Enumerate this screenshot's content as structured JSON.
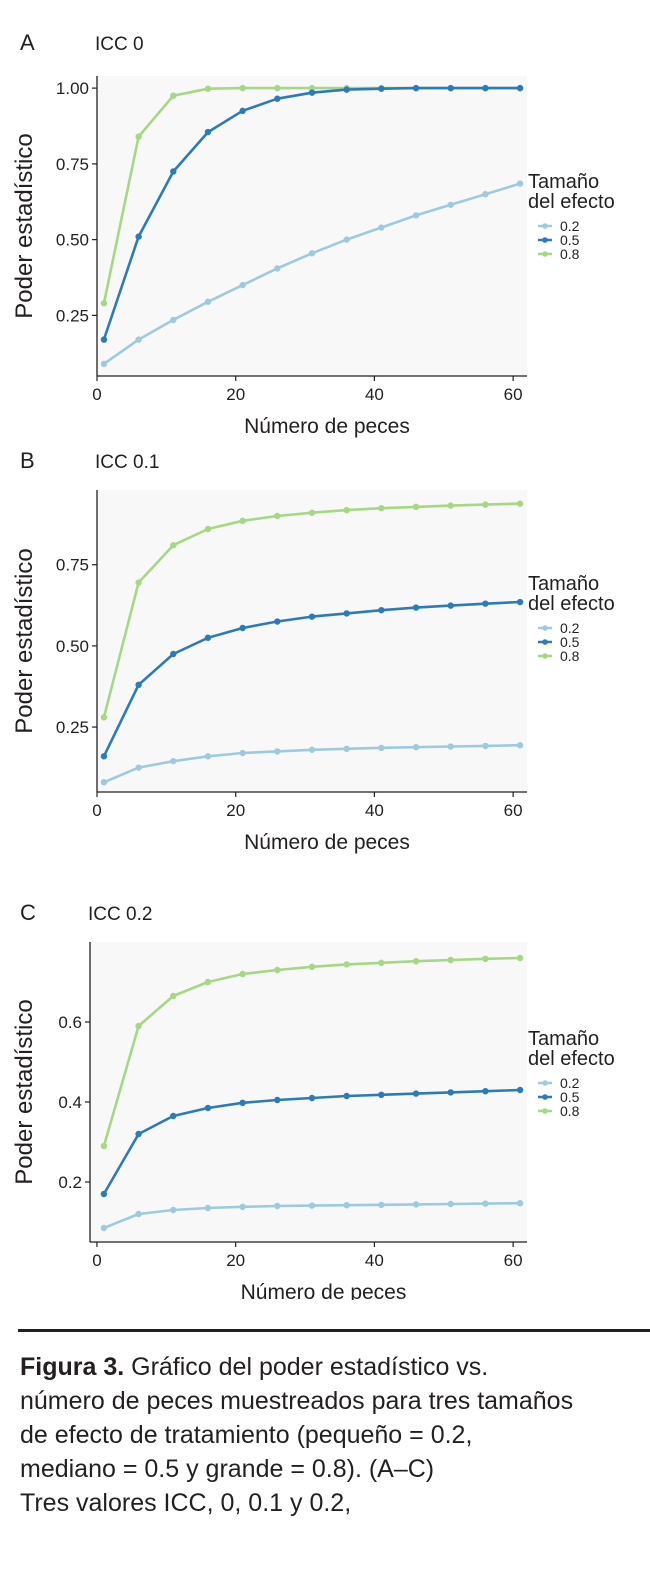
{
  "chart_data": [
    {
      "type": "line",
      "panel": "A",
      "title": "ICC 0",
      "xlabel": "Número de peces",
      "ylabel": "Poder estadístico",
      "xlim": [
        0,
        62
      ],
      "ylim": [
        0.05,
        1.04
      ],
      "xticks": [
        0,
        20,
        40,
        60
      ],
      "yticks": [
        0.25,
        0.5,
        0.75,
        1.0
      ],
      "ytick_labels": [
        "0.25",
        "0.50",
        "0.75",
        "1.00"
      ],
      "legend_title": [
        "Tamaño",
        "del efecto"
      ],
      "x": [
        1,
        6,
        11,
        16,
        21,
        26,
        31,
        36,
        41,
        46,
        51,
        56,
        61
      ],
      "series": [
        {
          "name": "0.2",
          "color": "#9ecae1",
          "values": [
            0.09,
            0.17,
            0.235,
            0.295,
            0.35,
            0.405,
            0.455,
            0.5,
            0.54,
            0.58,
            0.615,
            0.65,
            0.685
          ]
        },
        {
          "name": "0.5",
          "color": "#2b7bba",
          "values": [
            0.17,
            0.51,
            0.725,
            0.855,
            0.925,
            0.965,
            0.985,
            0.995,
            0.998,
            1.0,
            1.0,
            1.0,
            1.0
          ]
        },
        {
          "name": "0.8",
          "color": "#a6d785",
          "values": [
            0.29,
            0.84,
            0.975,
            0.998,
            1.0,
            1.0,
            1.0,
            1.0,
            1.0,
            1.0,
            1.0,
            1.0,
            1.0
          ]
        }
      ]
    },
    {
      "type": "line",
      "panel": "B",
      "title": "ICC 0.1",
      "xlabel": "Número de peces",
      "ylabel": "Poder estadístico",
      "xlim": [
        0,
        62
      ],
      "ylim": [
        0.05,
        0.98
      ],
      "xticks": [
        0,
        20,
        40,
        60
      ],
      "yticks": [
        0.25,
        0.5,
        0.75
      ],
      "ytick_labels": [
        "0.25",
        "0.50",
        "0.75"
      ],
      "legend_title": [
        "Tamaño",
        "del efecto"
      ],
      "x": [
        1,
        6,
        11,
        16,
        21,
        26,
        31,
        36,
        41,
        46,
        51,
        56,
        61
      ],
      "series": [
        {
          "name": "0.2",
          "color": "#9ecae1",
          "values": [
            0.08,
            0.125,
            0.145,
            0.16,
            0.17,
            0.175,
            0.18,
            0.183,
            0.186,
            0.188,
            0.19,
            0.192,
            0.194
          ]
        },
        {
          "name": "0.5",
          "color": "#2b7bba",
          "values": [
            0.16,
            0.38,
            0.475,
            0.525,
            0.555,
            0.575,
            0.59,
            0.6,
            0.61,
            0.618,
            0.624,
            0.63,
            0.635
          ]
        },
        {
          "name": "0.8",
          "color": "#a6d785",
          "values": [
            0.28,
            0.695,
            0.81,
            0.86,
            0.885,
            0.9,
            0.91,
            0.918,
            0.924,
            0.928,
            0.932,
            0.935,
            0.938
          ]
        }
      ]
    },
    {
      "type": "line",
      "panel": "C",
      "title": "ICC 0.2",
      "xlabel": "Número de peces",
      "ylabel": "Poder estadístico",
      "xlim": [
        -1,
        62
      ],
      "ylim": [
        0.05,
        0.8
      ],
      "xticks": [
        0,
        20,
        40,
        60
      ],
      "yticks": [
        0.2,
        0.4,
        0.6
      ],
      "ytick_labels": [
        "0.2",
        "0.4",
        "0.6"
      ],
      "legend_title": [
        "Tamaño",
        "del efecto"
      ],
      "x": [
        1,
        6,
        11,
        16,
        21,
        26,
        31,
        36,
        41,
        46,
        51,
        56,
        61
      ],
      "series": [
        {
          "name": "0.2",
          "color": "#9ecae1",
          "values": [
            0.085,
            0.12,
            0.13,
            0.135,
            0.138,
            0.14,
            0.141,
            0.142,
            0.143,
            0.144,
            0.145,
            0.146,
            0.147
          ]
        },
        {
          "name": "0.5",
          "color": "#2b7bba",
          "values": [
            0.17,
            0.32,
            0.365,
            0.385,
            0.398,
            0.405,
            0.41,
            0.415,
            0.418,
            0.421,
            0.424,
            0.427,
            0.43
          ]
        },
        {
          "name": "0.8",
          "color": "#a6d785",
          "values": [
            0.29,
            0.59,
            0.665,
            0.7,
            0.72,
            0.73,
            0.738,
            0.744,
            0.748,
            0.752,
            0.755,
            0.758,
            0.76
          ]
        }
      ]
    }
  ],
  "caption": {
    "label": "Figura 3.",
    "lines": [
      " Gráfico del poder estadístico vs.",
      "número de peces muestreados para tres tamaños",
      "de efecto de tratamiento (pequeño = 0.2,",
      "mediano = 0.5 y grande = 0.8). (A–C)",
      "Tres valores ICC, 0, 0.1 y 0.2,"
    ]
  }
}
